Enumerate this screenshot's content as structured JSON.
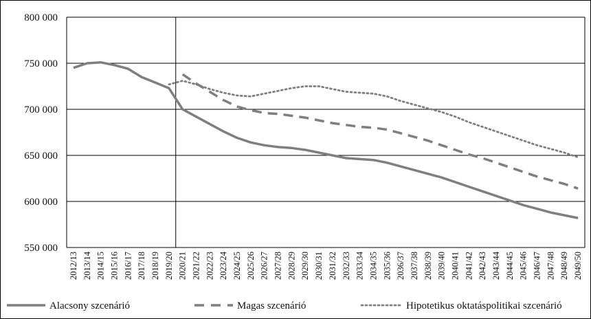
{
  "chart_data": {
    "type": "line",
    "title": "",
    "xlabel": "",
    "ylabel": "",
    "ylim": [
      550000,
      800000
    ],
    "y_ticks": [
      "800 000",
      "750 000",
      "700 000",
      "650 000",
      "600 000",
      "550 000"
    ],
    "y_tick_values": [
      800000,
      750000,
      700000,
      650000,
      600000,
      550000
    ],
    "grid": "horizontal",
    "legend_position": "bottom",
    "categories": [
      "2012/13",
      "2013/14",
      "2014/15",
      "2015/16",
      "2016/17",
      "2017/18",
      "2018/19",
      "2019/20",
      "2020/21",
      "2021/22",
      "2022/23",
      "2023/24",
      "2024/25",
      "2025/26",
      "2026/27",
      "2027/28",
      "2028/29",
      "2029/30",
      "2030/31",
      "2031/32",
      "2032/33",
      "2033/34",
      "2034/35",
      "2035/36",
      "2036/37",
      "2037/38",
      "2038/39",
      "2039/40",
      "2040/41",
      "2041/42",
      "2042/43",
      "2043/44",
      "2044/45",
      "2045/46",
      "2046/47",
      "2047/48",
      "2048/49",
      "2049/50"
    ],
    "vertical_marker": "2019/20",
    "series": [
      {
        "name": "Alacsony szcenárió",
        "style": "solid",
        "color": "#7f7f7f",
        "values": [
          745000,
          750000,
          751000,
          748000,
          744000,
          735000,
          729000,
          723000,
          700000,
          692000,
          684000,
          676000,
          669000,
          664000,
          661000,
          659000,
          658000,
          656000,
          653000,
          650000,
          647000,
          646000,
          645000,
          642000,
          638000,
          634000,
          630000,
          626000,
          621000,
          616000,
          611000,
          606000,
          601000,
          596000,
          592000,
          588000,
          585000,
          582000
        ]
      },
      {
        "name": "Magas szcenárió",
        "style": "dashed",
        "color": "#7f7f7f",
        "values": [
          null,
          null,
          null,
          null,
          null,
          null,
          null,
          null,
          738000,
          728000,
          719000,
          710000,
          703000,
          699000,
          696000,
          695000,
          693000,
          691000,
          688000,
          685000,
          683000,
          681000,
          680000,
          678000,
          674000,
          670000,
          666000,
          661000,
          656000,
          651000,
          647000,
          642000,
          637000,
          632000,
          627000,
          623000,
          619000,
          614000
        ]
      },
      {
        "name": "Hipotetikus oktatáspolitikai szcenárió",
        "style": "dotted",
        "color": "#7f7f7f",
        "values": [
          null,
          null,
          null,
          null,
          null,
          null,
          null,
          727000,
          731000,
          727000,
          722000,
          718000,
          715000,
          714000,
          717000,
          720000,
          723000,
          725000,
          725000,
          722000,
          719000,
          718000,
          717000,
          714000,
          709000,
          705000,
          701000,
          697000,
          692000,
          686000,
          681000,
          676000,
          671000,
          666000,
          661000,
          657000,
          653000,
          648000
        ]
      }
    ]
  }
}
